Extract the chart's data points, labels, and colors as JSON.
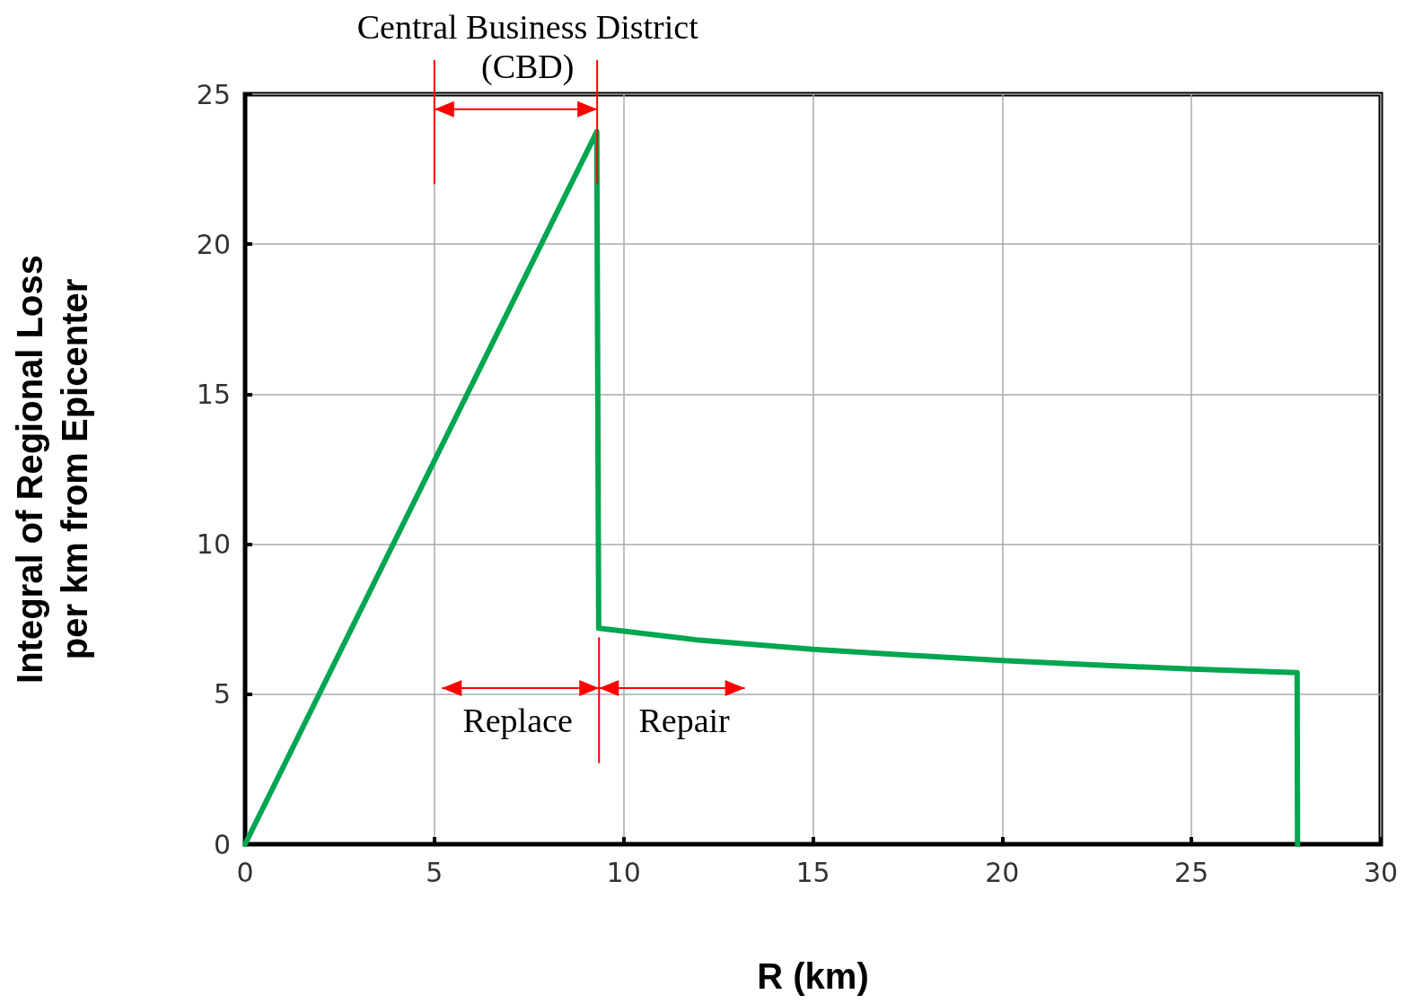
{
  "chart_data": {
    "type": "line",
    "xlabel": "R (km)",
    "ylabel": "Integral of Regional Loss\nper km from Epicenter",
    "annotations": [
      {
        "text": "Central Business District\n(CBD)",
        "x": 9.29,
        "y": 23.75
      },
      "Replace",
      "Repair"
    ],
    "series": [
      {
        "color": "#00a650",
        "x": [
          0,
          9.29,
          9.34,
          10,
          12,
          15,
          17.5,
          20,
          22.5,
          25,
          27.79,
          27.8
        ],
        "values": [
          0,
          23.75,
          7.2,
          7.1,
          6.8,
          6.5,
          6.3,
          6.12,
          5.97,
          5.84,
          5.72,
          0
        ]
      }
    ],
    "xlim": [
      0,
      30
    ],
    "xticks": [
      0,
      5,
      10,
      15,
      20,
      25,
      30
    ],
    "ylim": [
      0,
      25
    ],
    "yticks": [
      0,
      5,
      10,
      15,
      20,
      25
    ],
    "grid": true,
    "marker": "none",
    "line_style": "solid"
  }
}
